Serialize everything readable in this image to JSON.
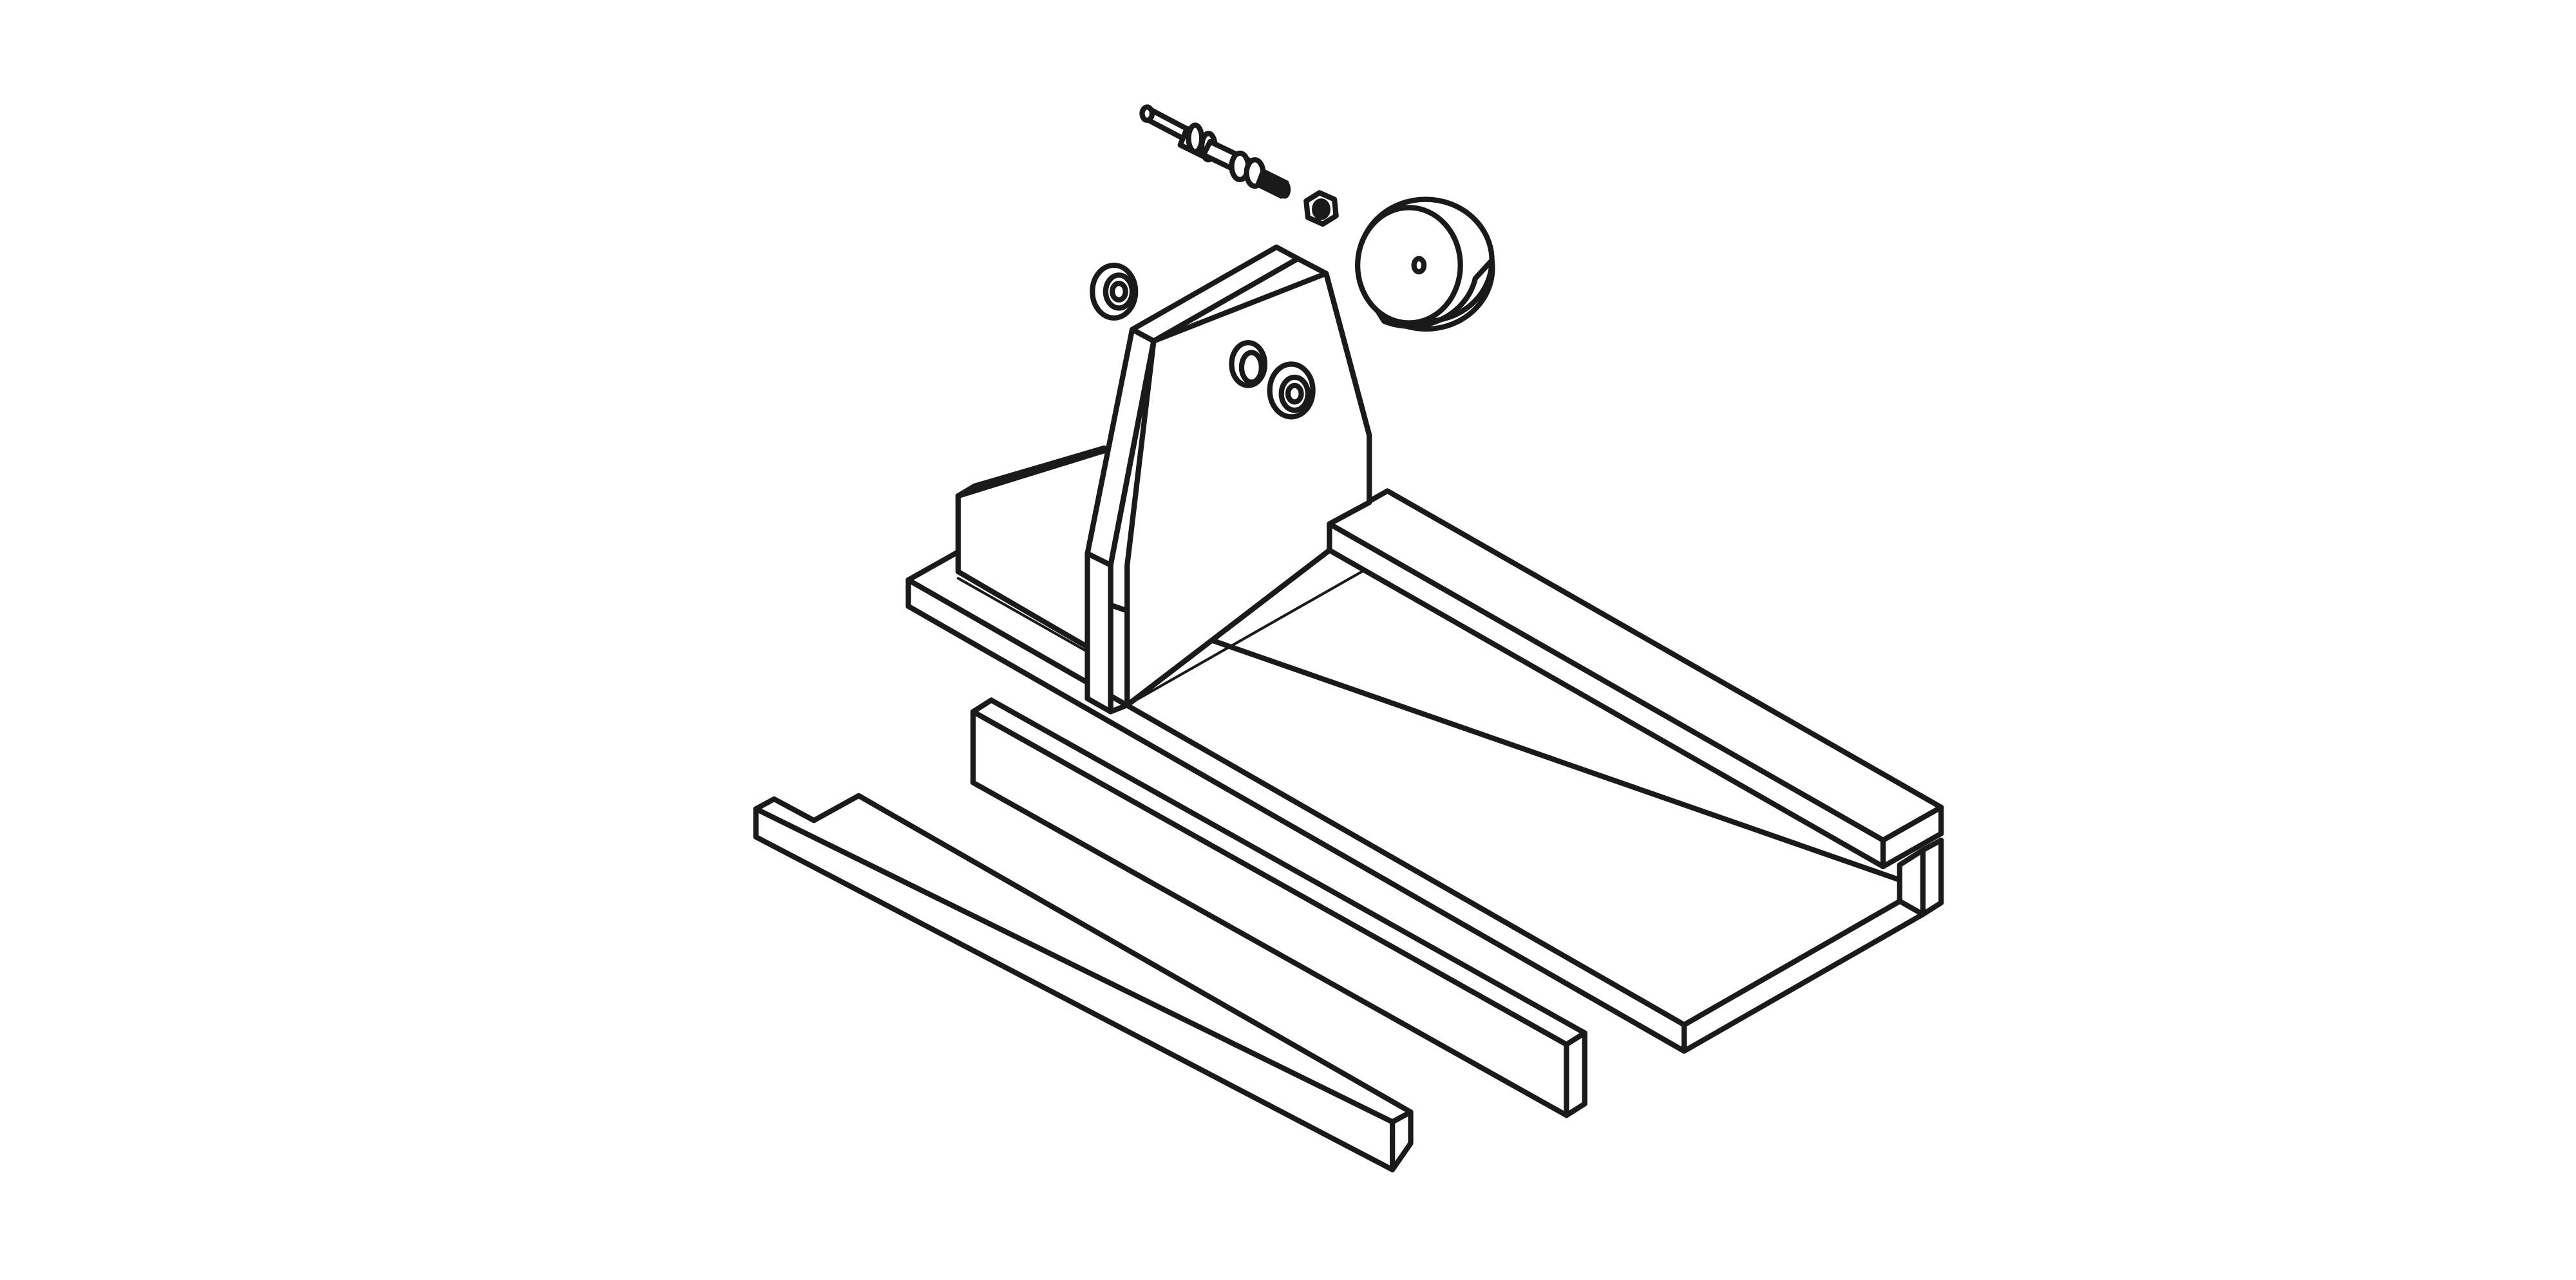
{
  "figure": {
    "kind": "isometric exploded line drawing",
    "background_color": "#ffffff",
    "line_color": "#1a1a1a",
    "parts": [
      {
        "id": "base-plate",
        "icon": "base-plate-icon"
      },
      {
        "id": "right-rail",
        "icon": "rail-icon"
      },
      {
        "id": "upright-support",
        "icon": "upright-icon"
      },
      {
        "id": "back-wedge",
        "icon": "wedge-icon"
      },
      {
        "id": "bearing-left",
        "icon": "bearing-icon"
      },
      {
        "id": "bearing-right",
        "icon": "bearing-icon"
      },
      {
        "id": "axle-shaft",
        "icon": "shaft-icon"
      },
      {
        "id": "hex-nut",
        "icon": "nut-icon"
      },
      {
        "id": "wheel-disc",
        "icon": "wheel-icon"
      },
      {
        "id": "front-rail",
        "icon": "rail-icon"
      },
      {
        "id": "notched-rail",
        "icon": "notched-rail-icon"
      }
    ]
  }
}
